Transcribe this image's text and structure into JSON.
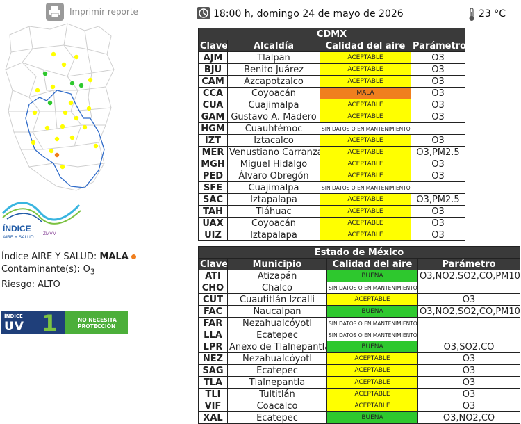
{
  "print": {
    "label": "Imprimir reporte"
  },
  "header": {
    "datetime": "18:00 h, domingo 24 de mayo de 2026",
    "temperature": "23 °C"
  },
  "logo": {
    "title": "ÍNDICE",
    "subtitle": "AIRE Y SALUD",
    "region": "ZMVM"
  },
  "status": {
    "index_label": "Índice AIRE Y SALUD:",
    "index_value": "MALA",
    "pollutant_label": "Contaminante(s):",
    "pollutant_value": "O",
    "pollutant_sub": "3",
    "risk_label": "Riesgo:",
    "risk_value": "ALTO"
  },
  "uv": {
    "small": "ÍNDICE",
    "big": "UV",
    "value": "1",
    "message_line1": "NO NECESITA",
    "message_line2": "PROTECCIÓN"
  },
  "cdmx": {
    "title": "CDMX",
    "headers": [
      "Clave",
      "Alcaldía",
      "Calidad del aire",
      "Parámetro"
    ],
    "rows": [
      {
        "clave": "AJM",
        "name": "Tlalpan",
        "quality": "ACEPTABLE",
        "status": "aceptable",
        "param": "O3"
      },
      {
        "clave": "BJU",
        "name": "Benito Juárez",
        "quality": "ACEPTABLE",
        "status": "aceptable",
        "param": "O3"
      },
      {
        "clave": "CAM",
        "name": "Azcapotzalco",
        "quality": "ACEPTABLE",
        "status": "aceptable",
        "param": "O3"
      },
      {
        "clave": "CCA",
        "name": "Coyoacán",
        "quality": "MALA",
        "status": "mala",
        "param": "O3"
      },
      {
        "clave": "CUA",
        "name": "Cuajimalpa",
        "quality": "ACEPTABLE",
        "status": "aceptable",
        "param": "O3"
      },
      {
        "clave": "GAM",
        "name": "Gustavo A. Madero",
        "quality": "ACEPTABLE",
        "status": "aceptable",
        "param": "O3"
      },
      {
        "clave": "HGM",
        "name": "Cuauhtémoc",
        "quality": "SIN DATOS O EN MANTENIMIENTO",
        "status": "nodata",
        "param": ""
      },
      {
        "clave": "IZT",
        "name": "Iztacalco",
        "quality": "ACEPTABLE",
        "status": "aceptable",
        "param": "O3"
      },
      {
        "clave": "MER",
        "name": "Venustiano Carranza",
        "quality": "ACEPTABLE",
        "status": "aceptable",
        "param": "O3,PM2.5"
      },
      {
        "clave": "MGH",
        "name": "Miguel Hidalgo",
        "quality": "ACEPTABLE",
        "status": "aceptable",
        "param": "O3"
      },
      {
        "clave": "PED",
        "name": "Álvaro Obregón",
        "quality": "ACEPTABLE",
        "status": "aceptable",
        "param": "O3"
      },
      {
        "clave": "SFE",
        "name": "Cuajimalpa",
        "quality": "SIN DATOS O EN MANTENIMIENTO",
        "status": "nodata",
        "param": ""
      },
      {
        "clave": "SAC",
        "name": "Iztapalapa",
        "quality": "ACEPTABLE",
        "status": "aceptable",
        "param": "O3,PM2.5"
      },
      {
        "clave": "TAH",
        "name": "Tláhuac",
        "quality": "ACEPTABLE",
        "status": "aceptable",
        "param": "O3"
      },
      {
        "clave": "UAX",
        "name": "Coyoacán",
        "quality": "ACEPTABLE",
        "status": "aceptable",
        "param": "O3"
      },
      {
        "clave": "UIZ",
        "name": "Iztapalapa",
        "quality": "ACEPTABLE",
        "status": "aceptable",
        "param": "O3"
      }
    ]
  },
  "edomex": {
    "title": "Estado de México",
    "headers": [
      "Clave",
      "Municipio",
      "Calidad del aire",
      "Parámetro"
    ],
    "rows": [
      {
        "clave": "ATI",
        "name": "Atizapán",
        "quality": "BUENA",
        "status": "buena",
        "param": "O3,NO2,SO2,CO,PM10"
      },
      {
        "clave": "CHO",
        "name": "Chalco",
        "quality": "SIN DATOS O EN MANTENIMIENTO",
        "status": "nodata",
        "param": ""
      },
      {
        "clave": "CUT",
        "name": "Cuautitlán Izcalli",
        "quality": "ACEPTABLE",
        "status": "aceptable",
        "param": "O3"
      },
      {
        "clave": "FAC",
        "name": "Naucalpan",
        "quality": "BUENA",
        "status": "buena",
        "param": "O3,NO2,SO2,CO,PM10"
      },
      {
        "clave": "FAR",
        "name": "Nezahualcóyotl",
        "quality": "SIN DATOS O EN MANTENIMIENTO",
        "status": "nodata",
        "param": ""
      },
      {
        "clave": "LLA",
        "name": "Ecatepec",
        "quality": "SIN DATOS O EN MANTENIMIENTO",
        "status": "nodata",
        "param": ""
      },
      {
        "clave": "LPR",
        "name": "Anexo de Tlalnepantla",
        "quality": "BUENA",
        "status": "buena",
        "param": "O3,SO2,CO"
      },
      {
        "clave": "NEZ",
        "name": "Nezahualcóyotl",
        "quality": "ACEPTABLE",
        "status": "aceptable",
        "param": "O3"
      },
      {
        "clave": "SAG",
        "name": "Ecatepec",
        "quality": "ACEPTABLE",
        "status": "aceptable",
        "param": "O3"
      },
      {
        "clave": "TLA",
        "name": "Tlalnepantla",
        "quality": "ACEPTABLE",
        "status": "aceptable",
        "param": "O3"
      },
      {
        "clave": "TLI",
        "name": "Tultitlán",
        "quality": "ACEPTABLE",
        "status": "aceptable",
        "param": "O3"
      },
      {
        "clave": "VIF",
        "name": "Coacalco",
        "quality": "ACEPTABLE",
        "status": "aceptable",
        "param": "O3"
      },
      {
        "clave": "XAL",
        "name": "Ecatepec",
        "quality": "BUENA",
        "status": "buena",
        "param": "O3,NO2,CO"
      }
    ]
  },
  "colors": {
    "aceptable": "#ffff00",
    "mala": "#f07f1e",
    "buena": "#2ec82e",
    "header_bg": "#3a3a3a"
  },
  "map_stations": [
    {
      "status": "aceptable"
    },
    {
      "status": "aceptable"
    },
    {
      "status": "aceptable"
    },
    {
      "status": "buena"
    },
    {
      "status": "aceptable"
    },
    {
      "status": "buena"
    },
    {
      "status": "buena"
    },
    {
      "status": "aceptable"
    },
    {
      "status": "aceptable"
    },
    {
      "status": "buena"
    },
    {
      "status": "aceptable"
    },
    {
      "status": "aceptable"
    },
    {
      "status": "aceptable"
    },
    {
      "status": "aceptable"
    },
    {
      "status": "aceptable"
    },
    {
      "status": "aceptable"
    },
    {
      "status": "aceptable"
    },
    {
      "status": "aceptable"
    },
    {
      "status": "aceptable"
    },
    {
      "status": "aceptable"
    },
    {
      "status": "mala"
    },
    {
      "status": "aceptable"
    },
    {
      "status": "aceptable"
    },
    {
      "status": "aceptable"
    },
    {
      "status": "aceptable"
    }
  ]
}
